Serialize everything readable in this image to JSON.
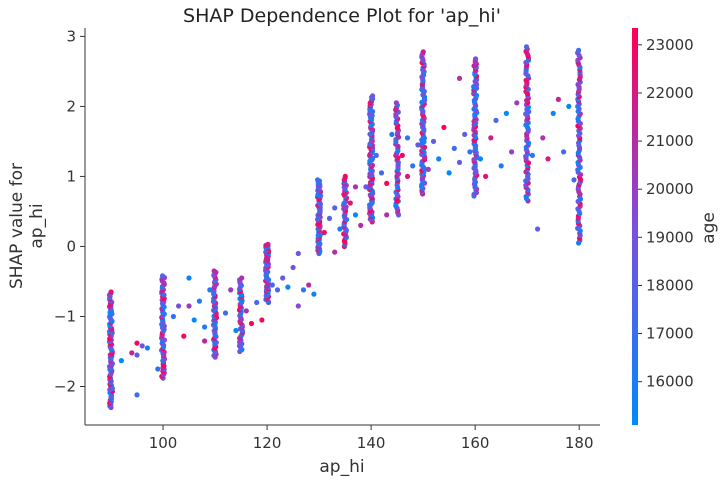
{
  "chart_data": {
    "type": "scatter",
    "title": "SHAP Dependence Plot for 'ap_hi'",
    "xlabel": "ap_hi",
    "ylabel_lines": [
      "SHAP value for",
      "ap_hi"
    ],
    "xlim": [
      85,
      184
    ],
    "ylim": [
      -2.55,
      3.12
    ],
    "x_ticks": [
      100,
      120,
      140,
      160,
      180
    ],
    "y_ticks": [
      -2,
      -1,
      0,
      1,
      2,
      3
    ],
    "grid": false,
    "colorbar": {
      "label": "age",
      "range": [
        15100,
        23350
      ],
      "ticks": [
        16000,
        17000,
        18000,
        19000,
        20000,
        21000,
        22000,
        23000
      ],
      "colors": [
        "#008afb",
        "#7c4fe0",
        "#ff0052"
      ]
    },
    "columns": [
      {
        "x": 90,
        "y_min": -2.3,
        "y_max": -0.65,
        "n": 80
      },
      {
        "x": 100,
        "y_min": -1.88,
        "y_max": -0.42,
        "n": 60
      },
      {
        "x": 110,
        "y_min": -1.58,
        "y_max": -0.35,
        "n": 60
      },
      {
        "x": 115,
        "y_min": -1.5,
        "y_max": -0.45,
        "n": 40
      },
      {
        "x": 120,
        "y_min": -0.8,
        "y_max": 0.03,
        "n": 60
      },
      {
        "x": 130,
        "y_min": -0.1,
        "y_max": 0.95,
        "n": 70
      },
      {
        "x": 135,
        "y_min": 0.0,
        "y_max": 1.0,
        "n": 40
      },
      {
        "x": 140,
        "y_min": 0.35,
        "y_max": 2.15,
        "n": 90
      },
      {
        "x": 145,
        "y_min": 0.45,
        "y_max": 2.05,
        "n": 50
      },
      {
        "x": 150,
        "y_min": 0.75,
        "y_max": 2.78,
        "n": 80
      },
      {
        "x": 160,
        "y_min": 0.72,
        "y_max": 2.68,
        "n": 80
      },
      {
        "x": 170,
        "y_min": 0.65,
        "y_max": 2.85,
        "n": 70
      },
      {
        "x": 180,
        "y_min": 0.05,
        "y_max": 2.8,
        "n": 80
      }
    ],
    "sparse_points": [
      [
        92,
        -1.63
      ],
      [
        94,
        -1.52
      ],
      [
        95,
        -1.38
      ],
      [
        95,
        -1.55
      ],
      [
        95,
        -2.12
      ],
      [
        96,
        -1.42
      ],
      [
        97,
        -1.45
      ],
      [
        99,
        -1.75
      ],
      [
        102,
        -1.0
      ],
      [
        103,
        -0.85
      ],
      [
        104,
        -1.28
      ],
      [
        105,
        -0.85
      ],
      [
        105,
        -0.45
      ],
      [
        106,
        -1.05
      ],
      [
        107,
        -0.78
      ],
      [
        108,
        -1.15
      ],
      [
        108,
        -1.35
      ],
      [
        109,
        -0.62
      ],
      [
        112,
        -0.95
      ],
      [
        113,
        -0.62
      ],
      [
        114,
        -1.2
      ],
      [
        116,
        -0.92
      ],
      [
        117,
        -1.1
      ],
      [
        118,
        -0.8
      ],
      [
        119,
        -1.05
      ],
      [
        121,
        -0.55
      ],
      [
        122,
        -0.62
      ],
      [
        123,
        -0.45
      ],
      [
        124,
        -0.58
      ],
      [
        125,
        -0.3
      ],
      [
        126,
        -0.85
      ],
      [
        126,
        -0.1
      ],
      [
        127,
        -0.62
      ],
      [
        128,
        -0.55
      ],
      [
        129,
        -0.68
      ],
      [
        131,
        0.2
      ],
      [
        132,
        0.4
      ],
      [
        133,
        0.55
      ],
      [
        134,
        0.25
      ],
      [
        136,
        0.62
      ],
      [
        137,
        0.85
      ],
      [
        137,
        0.45
      ],
      [
        138,
        0.3
      ],
      [
        139,
        0.85
      ],
      [
        141,
        1.3
      ],
      [
        142,
        1.05
      ],
      [
        143,
        0.9
      ],
      [
        144,
        1.6
      ],
      [
        146,
        1.3
      ],
      [
        147,
        1.0
      ],
      [
        147,
        1.55
      ],
      [
        148,
        1.15
      ],
      [
        149,
        1.45
      ],
      [
        151,
        1.1
      ],
      [
        152,
        1.5
      ],
      [
        153,
        1.25
      ],
      [
        154,
        1.7
      ],
      [
        155,
        1.05
      ],
      [
        156,
        1.4
      ],
      [
        157,
        2.4
      ],
      [
        157,
        1.2
      ],
      [
        158,
        1.6
      ],
      [
        159,
        1.35
      ],
      [
        161,
        1.25
      ],
      [
        162,
        1.0
      ],
      [
        163,
        1.55
      ],
      [
        164,
        1.8
      ],
      [
        165,
        1.15
      ],
      [
        166,
        1.9
      ],
      [
        167,
        1.35
      ],
      [
        168,
        2.05
      ],
      [
        171,
        1.3
      ],
      [
        172,
        0.25
      ],
      [
        173,
        1.55
      ],
      [
        174,
        1.25
      ],
      [
        175,
        1.9
      ],
      [
        176,
        2.1
      ],
      [
        177,
        1.35
      ],
      [
        178,
        2.0
      ],
      [
        179,
        0.95
      ],
      [
        145,
        0.65
      ],
      [
        133,
        -0.08
      ],
      [
        143,
        0.45
      ]
    ]
  }
}
